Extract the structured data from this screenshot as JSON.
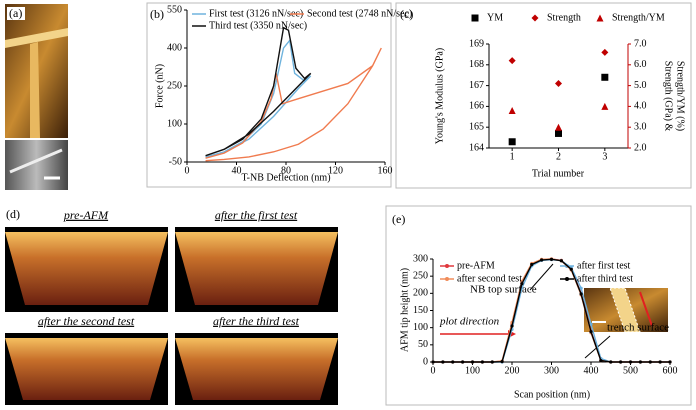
{
  "panels": {
    "a": {
      "label": "(a)"
    },
    "d": {
      "label": "(d)",
      "captions": [
        "pre-AFM",
        "after the first test",
        "after the second test",
        "after the third test"
      ]
    }
  },
  "chart_data": [
    {
      "type": "line",
      "label": "(b)",
      "xlabel": "T-NB Deflection (nm)",
      "ylabel": "Force (nN)",
      "xlim": [
        0,
        160
      ],
      "xticks": [
        0,
        40,
        80,
        120,
        160
      ],
      "ylim": [
        -50,
        550
      ],
      "yticks": [
        -50,
        100,
        250,
        400,
        550
      ],
      "series": [
        {
          "name": "First test (3126 nN/sec)",
          "color": "#6fb3dd",
          "x": [
            15,
            30,
            45,
            60,
            70,
            78,
            83,
            87,
            95,
            100,
            90,
            70,
            50,
            30,
            15
          ],
          "values": [
            -30,
            -10,
            30,
            100,
            220,
            400,
            430,
            300,
            270,
            290,
            240,
            130,
            40,
            -10,
            -30
          ]
        },
        {
          "name": "Second test (2748 nN/sec)",
          "color": "#f07b4f",
          "x": [
            15,
            30,
            45,
            60,
            68,
            72,
            77,
            90,
            110,
            130,
            150,
            157,
            155,
            150,
            130,
            110,
            90,
            70,
            50,
            30,
            15
          ],
          "values": [
            -35,
            -15,
            25,
            110,
            200,
            300,
            180,
            200,
            230,
            260,
            330,
            400,
            380,
            330,
            180,
            80,
            20,
            -10,
            -30,
            -40,
            -45
          ]
        },
        {
          "name": "Third test (3350 nN/sec)",
          "color": "#111111",
          "x": [
            15,
            30,
            45,
            60,
            70,
            78,
            82,
            88,
            95,
            100,
            90,
            70,
            50,
            30,
            15
          ],
          "values": [
            -25,
            0,
            40,
            120,
            250,
            480,
            470,
            320,
            280,
            300,
            250,
            150,
            60,
            0,
            -25
          ]
        }
      ]
    },
    {
      "type": "scatter",
      "label": "(c)",
      "xlabel": "Trial number",
      "ylabel": "Young's Modulus (GPa)",
      "y2label": [
        "Strength (GPa) &",
        "Strength/YM (%)"
      ],
      "x": [
        1,
        2,
        3
      ],
      "xlim": [
        0.5,
        3.5
      ],
      "xticks": [
        1,
        2,
        3
      ],
      "ylim": [
        164,
        169
      ],
      "yticks": [
        164,
        165,
        166,
        167,
        168,
        169
      ],
      "y2lim": [
        2,
        7
      ],
      "y2ticks": [
        {
          "value": 2,
          "label": "2.0"
        },
        {
          "value": 3,
          "label": "3.0"
        },
        {
          "value": 4,
          "label": "4.0"
        },
        {
          "value": 5,
          "label": "5.0"
        },
        {
          "value": 6,
          "label": "6.0"
        },
        {
          "value": 7,
          "label": "7.0"
        }
      ],
      "series": [
        {
          "name": "YM",
          "color": "#000000",
          "marker": "square",
          "values": [
            164.3,
            164.7,
            167.4
          ]
        },
        {
          "name": "Strength",
          "color": "#c00000",
          "marker": "diamond",
          "axis": "y2",
          "values": [
            6.2,
            5.1,
            6.6
          ]
        },
        {
          "name": "Strength/YM",
          "color": "#c00000",
          "marker": "triangle",
          "axis": "y2",
          "values": [
            3.8,
            3.0,
            4.0
          ]
        }
      ]
    },
    {
      "type": "line",
      "label": "(e)",
      "xlabel": "Scan position (nm)",
      "ylabel": "AFM tip height (nm)",
      "annotations": [
        "NB top surface",
        "plot direction",
        "trench surface"
      ],
      "xlim": [
        0,
        600
      ],
      "xticks": [
        0,
        100,
        200,
        300,
        400,
        500,
        600
      ],
      "ylim": [
        0,
        300
      ],
      "yticks": [
        0,
        50,
        100,
        150,
        200,
        250,
        300
      ],
      "series": [
        {
          "name": "pre-AFM",
          "color": "#e0393e",
          "x": [
            0,
            25,
            50,
            75,
            100,
            125,
            150,
            175,
            200,
            225,
            250,
            275,
            300,
            325,
            350,
            375,
            400,
            425,
            450,
            475,
            500,
            525,
            550,
            575,
            600
          ],
          "values": [
            0,
            0,
            0,
            0,
            0,
            0,
            0,
            2,
            110,
            230,
            285,
            298,
            300,
            296,
            272,
            200,
            90,
            5,
            0,
            0,
            0,
            0,
            0,
            0,
            0
          ]
        },
        {
          "name": "after first test",
          "color": "#6ab0de",
          "x": [
            0,
            25,
            50,
            75,
            100,
            125,
            150,
            175,
            200,
            225,
            250,
            275,
            300,
            325,
            350,
            375,
            400,
            425,
            450,
            475,
            500,
            525,
            550,
            575,
            600
          ],
          "values": [
            0,
            0,
            0,
            0,
            0,
            0,
            0,
            0,
            95,
            215,
            280,
            296,
            298,
            295,
            275,
            215,
            110,
            10,
            0,
            0,
            0,
            0,
            0,
            0,
            0
          ]
        },
        {
          "name": "after second test",
          "color": "#f08c5a",
          "x": [
            0,
            25,
            50,
            75,
            100,
            125,
            150,
            175,
            200,
            225,
            250,
            275,
            300,
            325,
            350,
            375,
            400,
            425,
            450,
            475,
            500,
            525,
            550,
            575,
            600
          ],
          "values": [
            0,
            0,
            0,
            0,
            0,
            0,
            0,
            3,
            115,
            235,
            287,
            299,
            300,
            295,
            268,
            195,
            85,
            4,
            0,
            0,
            0,
            0,
            0,
            0,
            0
          ]
        },
        {
          "name": "after third test",
          "color": "#000000",
          "x": [
            0,
            25,
            50,
            75,
            100,
            125,
            150,
            175,
            200,
            225,
            250,
            275,
            300,
            325,
            350,
            375,
            400,
            425,
            450,
            475,
            500,
            525,
            550,
            575,
            600
          ],
          "values": [
            0,
            0,
            0,
            0,
            0,
            0,
            0,
            1,
            105,
            228,
            284,
            297,
            299,
            295,
            270,
            198,
            88,
            4,
            0,
            0,
            0,
            0,
            0,
            0,
            0
          ]
        }
      ]
    }
  ]
}
